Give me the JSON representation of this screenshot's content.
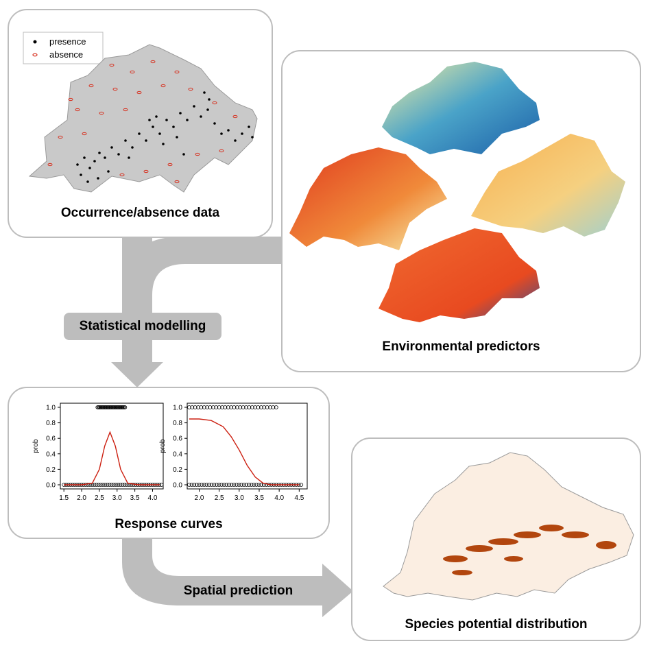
{
  "panels": {
    "occurrence": {
      "title": "Occurrence/absence data",
      "legend": [
        {
          "label": "presence",
          "color": "#000000"
        },
        {
          "label": "absence",
          "color": "#d7301f"
        }
      ]
    },
    "environmental": {
      "title": "Environmental predictors"
    },
    "response": {
      "title": "Response curves"
    },
    "distribution": {
      "title": "Species potential distribution"
    }
  },
  "arrows": {
    "modelling": "Statistical modelling",
    "prediction": "Spatial prediction"
  },
  "colors": {
    "arrow": "#bdbdbd",
    "panel_border": "#bdbdbd",
    "presence": "#000000",
    "absence": "#d7301f",
    "curve": "#cc1f10"
  },
  "chart_data": [
    {
      "type": "line",
      "ylabel": "prob",
      "xlim": [
        1.4,
        4.3
      ],
      "ylim": [
        0,
        1
      ],
      "x_ticks": [
        "1.5",
        "2.0",
        "2.5",
        "3.0",
        "3.5",
        "4.0"
      ],
      "y_ticks": [
        "0.0",
        "0.2",
        "0.4",
        "0.6",
        "0.8",
        "1.0"
      ],
      "series": [
        {
          "x": [
            1.5,
            2.0,
            2.3,
            2.5,
            2.65,
            2.8,
            2.95,
            3.1,
            3.3,
            3.6,
            4.2
          ],
          "y": [
            0.0,
            0.0,
            0.02,
            0.2,
            0.5,
            0.68,
            0.5,
            0.2,
            0.02,
            0.0,
            0.0
          ]
        }
      ],
      "presence_range": [
        2.45,
        3.25
      ],
      "absence_range": [
        1.5,
        4.25
      ]
    },
    {
      "type": "line",
      "ylabel": "prob",
      "xlim": [
        1.7,
        4.7
      ],
      "ylim": [
        0,
        1
      ],
      "x_ticks": [
        "2.0",
        "2.5",
        "3.0",
        "3.5",
        "4.0",
        "4.5"
      ],
      "y_ticks": [
        "0.0",
        "0.2",
        "0.4",
        "0.6",
        "0.8",
        "1.0"
      ],
      "series": [
        {
          "x": [
            1.75,
            2.0,
            2.3,
            2.6,
            2.8,
            3.0,
            3.2,
            3.4,
            3.6,
            3.8,
            4.0,
            4.5
          ],
          "y": [
            0.85,
            0.85,
            0.83,
            0.75,
            0.62,
            0.45,
            0.25,
            0.1,
            0.02,
            0.0,
            0.0,
            0.0
          ]
        }
      ],
      "presence_range": [
        1.75,
        4.0
      ],
      "absence_range": [
        1.75,
        4.55
      ]
    }
  ]
}
